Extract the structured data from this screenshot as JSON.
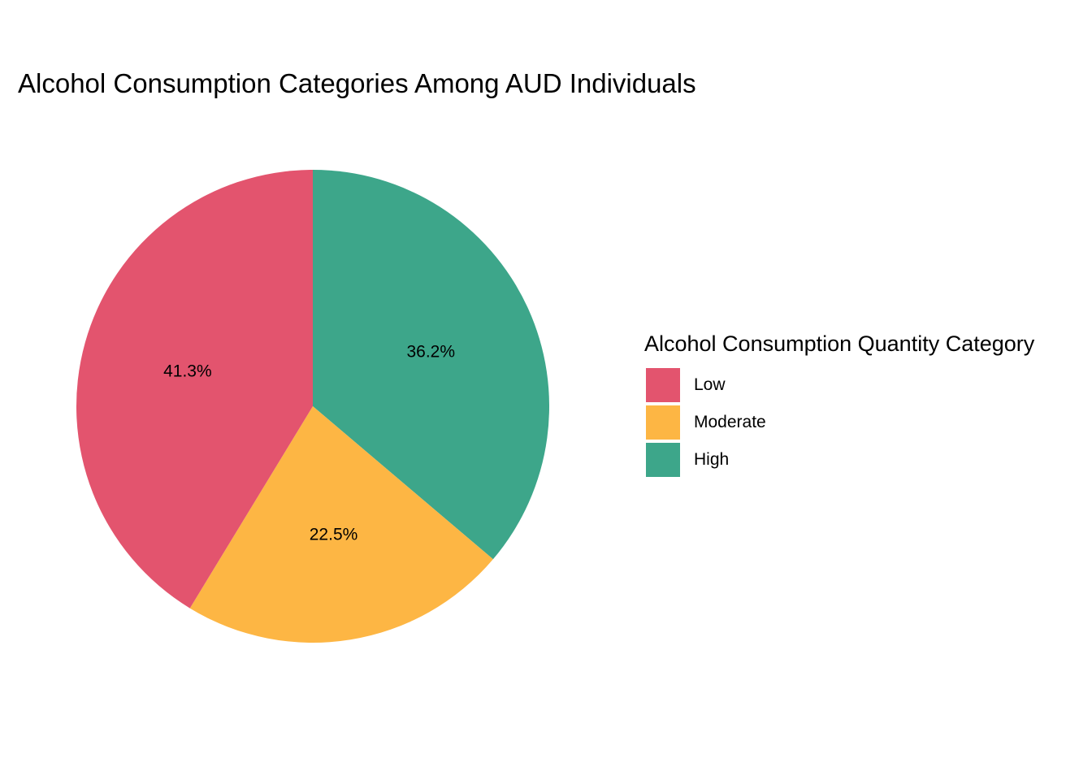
{
  "chart_data": {
    "type": "pie",
    "title": "Alcohol Consumption Categories Among AUD Individuals",
    "categories": [
      "Low",
      "Moderate",
      "High"
    ],
    "values": [
      41.3,
      22.5,
      36.2
    ],
    "labels": [
      "41.3%",
      "22.5%",
      "36.2%"
    ],
    "colors": [
      "#E3546E",
      "#FDB644",
      "#3DA68A"
    ],
    "legend": {
      "title": "Alcohol Consumption Quantity Category",
      "placement": "right"
    }
  }
}
